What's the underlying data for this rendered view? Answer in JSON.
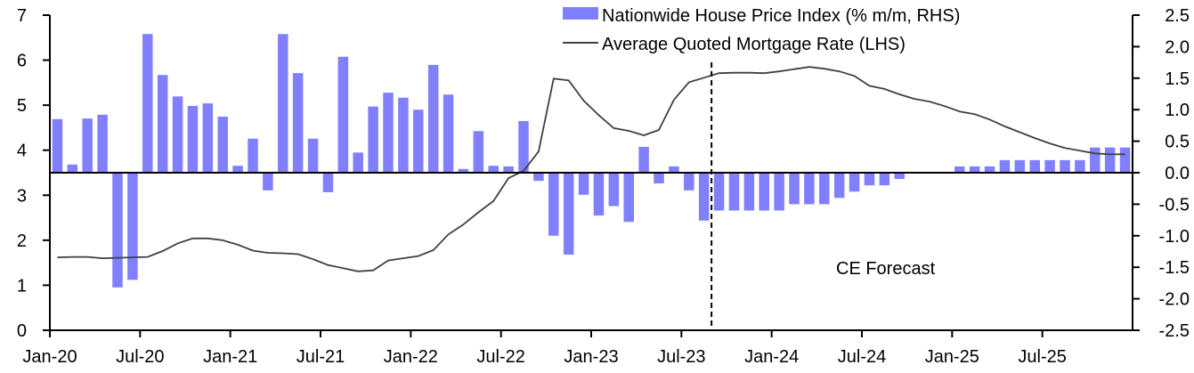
{
  "chart_data": {
    "type": "bar+line",
    "title": "",
    "x": [
      "Jan-20",
      "Feb-20",
      "Mar-20",
      "Apr-20",
      "May-20",
      "Jun-20",
      "Jul-20",
      "Aug-20",
      "Sep-20",
      "Oct-20",
      "Nov-20",
      "Dec-20",
      "Jan-21",
      "Feb-21",
      "Mar-21",
      "Apr-21",
      "May-21",
      "Jun-21",
      "Jul-21",
      "Aug-21",
      "Sep-21",
      "Oct-21",
      "Nov-21",
      "Dec-21",
      "Jan-22",
      "Feb-22",
      "Mar-22",
      "Apr-22",
      "May-22",
      "Jun-22",
      "Jul-22",
      "Aug-22",
      "Sep-22",
      "Oct-22",
      "Nov-22",
      "Dec-22",
      "Jan-23",
      "Feb-23",
      "Mar-23",
      "Apr-23",
      "May-23",
      "Jun-23",
      "Jul-23",
      "Aug-23",
      "Sep-23",
      "Oct-23",
      "Nov-23",
      "Dec-23",
      "Jan-24",
      "Feb-24",
      "Mar-24",
      "Apr-24",
      "May-24",
      "Jun-24",
      "Jul-24",
      "Aug-24",
      "Sep-24",
      "Oct-24",
      "Nov-24",
      "Dec-24",
      "Jan-25",
      "Feb-25",
      "Mar-25",
      "Apr-25",
      "May-25",
      "Jun-25",
      "Jul-25",
      "Aug-25",
      "Sep-25",
      "Oct-25",
      "Nov-25",
      "Dec-25"
    ],
    "x_tick_labels": [
      "Jan-20",
      "Jul-20",
      "Jan-21",
      "Jul-21",
      "Jan-22",
      "Jul-22",
      "Jan-23",
      "Jul-23",
      "Jan-24",
      "Jul-24",
      "Jan-25",
      "Jul-25"
    ],
    "y_left": {
      "label": "",
      "ylim": [
        0,
        7
      ],
      "ticks": [
        "0",
        "1",
        "2",
        "3",
        "4",
        "5",
        "6",
        "7"
      ]
    },
    "y_right": {
      "label": "",
      "ylim": [
        -2.5,
        2.5
      ],
      "ticks": [
        "-2.5",
        "-2.0",
        "-1.5",
        "-1.0",
        "-0.5",
        "0.0",
        "0.5",
        "1.0",
        "1.5",
        "2.0",
        "2.5"
      ]
    },
    "series": [
      {
        "name": "Nationwide House Price Index (% m/m, RHS)",
        "type": "bar",
        "axis": "right",
        "color": "#8080FF",
        "values": [
          0.85,
          0.13,
          0.86,
          0.92,
          -1.82,
          -1.7,
          2.2,
          1.55,
          1.21,
          1.06,
          1.1,
          0.89,
          0.11,
          0.54,
          -0.28,
          2.2,
          1.58,
          0.54,
          -0.31,
          1.84,
          0.32,
          1.05,
          1.27,
          1.19,
          1.0,
          1.71,
          1.24,
          0.06,
          0.66,
          0.11,
          0.1,
          0.82,
          -0.13,
          -1.0,
          -1.3,
          -0.35,
          -0.68,
          -0.53,
          -0.78,
          0.41,
          -0.17,
          0.1,
          -0.28,
          -0.76,
          -0.6,
          -0.6,
          -0.6,
          -0.6,
          -0.6,
          -0.5,
          -0.5,
          -0.5,
          -0.4,
          -0.3,
          -0.2,
          -0.2,
          -0.1,
          0,
          0,
          0,
          0.1,
          0.1,
          0.1,
          0.2,
          0.2,
          0.2,
          0.2,
          0.2,
          0.2,
          0.4,
          0.4,
          0.4
        ]
      },
      {
        "name": "Average Quoted Mortgage Rate (LHS)",
        "type": "line",
        "axis": "left",
        "color": "#404040",
        "values": [
          1.62,
          1.63,
          1.63,
          1.6,
          1.61,
          1.62,
          1.63,
          1.76,
          1.93,
          2.04,
          2.04,
          2.0,
          1.9,
          1.77,
          1.72,
          1.71,
          1.69,
          1.58,
          1.45,
          1.38,
          1.31,
          1.33,
          1.55,
          1.6,
          1.65,
          1.78,
          2.13,
          2.35,
          2.62,
          2.87,
          3.38,
          3.54,
          3.97,
          5.59,
          5.55,
          5.1,
          4.78,
          4.49,
          4.43,
          4.33,
          4.45,
          5.12,
          5.51,
          5.61,
          5.71,
          5.72,
          5.72,
          5.71,
          5.75,
          5.8,
          5.85,
          5.81,
          5.75,
          5.65,
          5.43,
          5.36,
          5.24,
          5.14,
          5.08,
          4.98,
          4.86,
          4.8,
          4.68,
          4.53,
          4.4,
          4.27,
          4.15,
          4.05,
          3.99,
          3.93,
          3.91,
          3.91
        ]
      }
    ],
    "legend_placement": "top-center",
    "forecast_start_index": 44,
    "annotations": [
      "CE Forecast"
    ],
    "grid": false
  }
}
